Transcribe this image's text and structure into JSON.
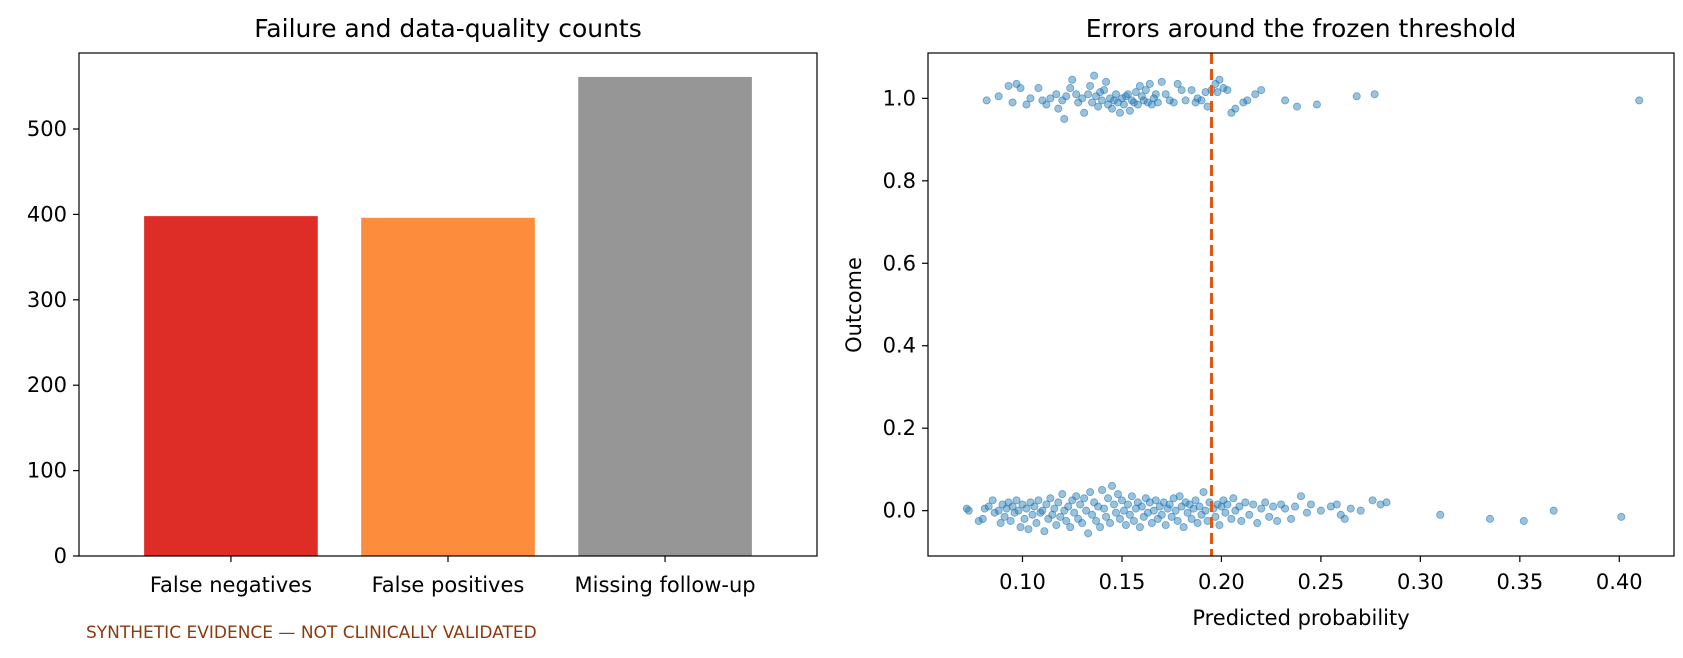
{
  "chart_data": [
    {
      "type": "bar",
      "title": "Failure and data-quality counts",
      "xlabel": "",
      "ylabel": "",
      "categories": [
        "False negatives",
        "False positives",
        "Missing follow-up"
      ],
      "values": [
        398,
        396,
        561
      ],
      "colors": [
        "#de2d26",
        "#fd8d3c",
        "#969696"
      ],
      "ylim": [
        0,
        589
      ],
      "yticks": [
        0,
        100,
        200,
        300,
        400,
        500
      ],
      "ytick_labels": [
        "0",
        "100",
        "200",
        "300",
        "400",
        "500"
      ],
      "grid": false
    },
    {
      "type": "scatter",
      "title": "Errors around the frozen threshold",
      "xlabel": "Predicted probability",
      "ylabel": "Outcome",
      "xlim": [
        0.0525,
        0.4275
      ],
      "ylim": [
        -0.11,
        1.11
      ],
      "xticks": [
        0.1,
        0.15,
        0.2,
        0.25,
        0.3,
        0.35,
        0.4
      ],
      "xtick_labels": [
        "0.10",
        "0.15",
        "0.20",
        "0.25",
        "0.30",
        "0.35",
        "0.40"
      ],
      "yticks": [
        0,
        0.2,
        0.4,
        0.6,
        0.8,
        1.0
      ],
      "ytick_labels": [
        "0.0",
        "0.2",
        "0.4",
        "0.6",
        "0.8",
        "1.0"
      ],
      "threshold": 0.195,
      "threshold_color": "#e6550d",
      "point_color": "#1f77b4",
      "grid": false,
      "points_outcome_1": [
        [
          0.082,
          0.995
        ],
        [
          0.088,
          1.005
        ],
        [
          0.093,
          1.03
        ],
        [
          0.095,
          0.99
        ],
        [
          0.097,
          1.035
        ],
        [
          0.099,
          1.025
        ],
        [
          0.102,
          0.985
        ],
        [
          0.104,
          1.0
        ],
        [
          0.108,
          1.025
        ],
        [
          0.11,
          0.995
        ],
        [
          0.112,
          0.985
        ],
        [
          0.114,
          1.0
        ],
        [
          0.117,
          1.01
        ],
        [
          0.118,
          0.975
        ],
        [
          0.12,
          0.995
        ],
        [
          0.121,
          0.95
        ],
        [
          0.122,
          1.005
        ],
        [
          0.124,
          1.025
        ],
        [
          0.125,
          1.045
        ],
        [
          0.127,
          1.01
        ],
        [
          0.128,
          0.99
        ],
        [
          0.13,
          1.0
        ],
        [
          0.131,
          0.965
        ],
        [
          0.133,
          1.01
        ],
        [
          0.134,
          1.03
        ],
        [
          0.135,
          0.99
        ],
        [
          0.136,
          1.055
        ],
        [
          0.137,
          1.005
        ],
        [
          0.138,
          0.98
        ],
        [
          0.139,
          1.015
        ],
        [
          0.14,
          0.995
        ],
        [
          0.141,
          1.02
        ],
        [
          0.142,
          1.04
        ],
        [
          0.143,
          0.985
        ],
        [
          0.144,
          1.0
        ],
        [
          0.145,
          0.975
        ],
        [
          0.146,
          0.995
        ],
        [
          0.147,
          1.01
        ],
        [
          0.148,
          0.99
        ],
        [
          0.149,
          0.965
        ],
        [
          0.15,
          1.0
        ],
        [
          0.151,
          0.985
        ],
        [
          0.152,
          1.005
        ],
        [
          0.153,
          1.01
        ],
        [
          0.154,
          0.97
        ],
        [
          0.155,
          0.995
        ],
        [
          0.156,
          0.99
        ],
        [
          0.157,
          1.015
        ],
        [
          0.158,
          0.985
        ],
        [
          0.159,
          1.03
        ],
        [
          0.16,
          1.005
        ],
        [
          0.161,
          0.995
        ],
        [
          0.162,
          1.02
        ],
        [
          0.163,
          0.99
        ],
        [
          0.164,
          1.035
        ],
        [
          0.165,
          0.985
        ],
        [
          0.166,
          1.0
        ],
        [
          0.167,
          1.01
        ],
        [
          0.168,
          0.99
        ],
        [
          0.17,
          1.04
        ],
        [
          0.172,
          1.01
        ],
        [
          0.174,
          0.995
        ],
        [
          0.176,
          0.99
        ],
        [
          0.178,
          1.035
        ],
        [
          0.18,
          1.02
        ],
        [
          0.182,
          0.995
        ],
        [
          0.185,
          1.02
        ],
        [
          0.187,
          0.99
        ],
        [
          0.188,
          1.0
        ],
        [
          0.19,
          0.995
        ],
        [
          0.192,
          1.015
        ],
        [
          0.193,
          0.98
        ],
        [
          0.195,
          1.02
        ],
        [
          0.197,
          1.035
        ],
        [
          0.198,
          1.015
        ],
        [
          0.199,
          1.045
        ],
        [
          0.201,
          1.025
        ],
        [
          0.203,
          1.02
        ],
        [
          0.205,
          0.965
        ],
        [
          0.207,
          0.975
        ],
        [
          0.211,
          0.99
        ],
        [
          0.213,
          0.995
        ],
        [
          0.217,
          1.01
        ],
        [
          0.22,
          1.02
        ],
        [
          0.232,
          0.995
        ],
        [
          0.238,
          0.98
        ],
        [
          0.248,
          0.985
        ],
        [
          0.268,
          1.005
        ],
        [
          0.277,
          1.01
        ],
        [
          0.41,
          0.995
        ]
      ],
      "points_outcome_0": [
        [
          0.072,
          0.005
        ],
        [
          0.073,
          0.0
        ],
        [
          0.078,
          -0.025
        ],
        [
          0.08,
          -0.02
        ],
        [
          0.081,
          0.005
        ],
        [
          0.083,
          0.01
        ],
        [
          0.085,
          0.025
        ],
        [
          0.086,
          -0.005
        ],
        [
          0.088,
          0.0
        ],
        [
          0.089,
          -0.03
        ],
        [
          0.09,
          0.015
        ],
        [
          0.091,
          -0.015
        ],
        [
          0.092,
          0.005
        ],
        [
          0.093,
          0.02
        ],
        [
          0.094,
          -0.025
        ],
        [
          0.095,
          0.01
        ],
        [
          0.096,
          -0.005
        ],
        [
          0.097,
          0.025
        ],
        [
          0.098,
          0.0
        ],
        [
          0.099,
          -0.04
        ],
        [
          0.1,
          0.015
        ],
        [
          0.101,
          -0.02
        ],
        [
          0.102,
          0.005
        ],
        [
          0.103,
          -0.045
        ],
        [
          0.104,
          0.02
        ],
        [
          0.105,
          -0.01
        ],
        [
          0.106,
          0.01
        ],
        [
          0.107,
          -0.03
        ],
        [
          0.108,
          0.025
        ],
        [
          0.109,
          -0.005
        ],
        [
          0.11,
          0.0
        ],
        [
          0.111,
          -0.05
        ],
        [
          0.112,
          0.015
        ],
        [
          0.113,
          -0.02
        ],
        [
          0.114,
          0.03
        ],
        [
          0.115,
          -0.01
        ],
        [
          0.116,
          0.005
        ],
        [
          0.117,
          -0.035
        ],
        [
          0.118,
          0.02
        ],
        [
          0.119,
          -0.015
        ],
        [
          0.12,
          0.04
        ],
        [
          0.121,
          0.0
        ],
        [
          0.122,
          -0.025
        ],
        [
          0.123,
          0.01
        ],
        [
          0.124,
          -0.04
        ],
        [
          0.125,
          0.025
        ],
        [
          0.126,
          -0.005
        ],
        [
          0.127,
          0.035
        ],
        [
          0.128,
          -0.02
        ],
        [
          0.129,
          0.015
        ],
        [
          0.13,
          -0.03
        ],
        [
          0.131,
          0.03
        ],
        [
          0.132,
          0.0
        ],
        [
          0.133,
          -0.055
        ],
        [
          0.134,
          0.045
        ],
        [
          0.135,
          -0.01
        ],
        [
          0.136,
          0.02
        ],
        [
          0.137,
          -0.025
        ],
        [
          0.138,
          0.01
        ],
        [
          0.139,
          -0.04
        ],
        [
          0.14,
          0.05
        ],
        [
          0.141,
          0.005
        ],
        [
          0.142,
          -0.015
        ],
        [
          0.143,
          0.03
        ],
        [
          0.144,
          -0.03
        ],
        [
          0.145,
          0.06
        ],
        [
          0.146,
          0.015
        ],
        [
          0.147,
          -0.005
        ],
        [
          0.148,
          0.04
        ],
        [
          0.149,
          -0.02
        ],
        [
          0.15,
          0.025
        ],
        [
          0.151,
          0.0
        ],
        [
          0.152,
          -0.035
        ],
        [
          0.153,
          0.015
        ],
        [
          0.154,
          -0.01
        ],
        [
          0.155,
          0.035
        ],
        [
          0.156,
          -0.025
        ],
        [
          0.157,
          0.005
        ],
        [
          0.158,
          0.02
        ],
        [
          0.159,
          -0.04
        ],
        [
          0.16,
          0.01
        ],
        [
          0.161,
          -0.015
        ],
        [
          0.162,
          0.03
        ],
        [
          0.163,
          -0.005
        ],
        [
          0.164,
          0.02
        ],
        [
          0.165,
          -0.03
        ],
        [
          0.166,
          0.0
        ],
        [
          0.167,
          0.025
        ],
        [
          0.168,
          -0.02
        ],
        [
          0.169,
          0.01
        ],
        [
          0.17,
          -0.01
        ],
        [
          0.171,
          0.02
        ],
        [
          0.172,
          -0.035
        ],
        [
          0.173,
          0.005
        ],
        [
          0.174,
          0.015
        ],
        [
          0.175,
          -0.015
        ],
        [
          0.176,
          0.03
        ],
        [
          0.177,
          0.0
        ],
        [
          0.178,
          -0.025
        ],
        [
          0.179,
          0.035
        ],
        [
          0.18,
          0.01
        ],
        [
          0.181,
          -0.04
        ],
        [
          0.182,
          0.02
        ],
        [
          0.183,
          -0.005
        ],
        [
          0.184,
          0.015
        ],
        [
          0.185,
          -0.02
        ],
        [
          0.186,
          0.005
        ],
        [
          0.187,
          0.025
        ],
        [
          0.188,
          -0.03
        ],
        [
          0.189,
          0.01
        ],
        [
          0.19,
          -0.01
        ],
        [
          0.191,
          0.045
        ],
        [
          0.192,
          0.0
        ],
        [
          0.193,
          -0.025
        ],
        [
          0.194,
          0.02
        ],
        [
          0.196,
          0.005
        ],
        [
          0.197,
          -0.015
        ],
        [
          0.198,
          0.015
        ],
        [
          0.199,
          -0.035
        ],
        [
          0.2,
          0.01
        ],
        [
          0.201,
          0.025
        ],
        [
          0.202,
          -0.005
        ],
        [
          0.203,
          0.015
        ],
        [
          0.205,
          -0.02
        ],
        [
          0.206,
          0.03
        ],
        [
          0.207,
          0.0
        ],
        [
          0.209,
          0.01
        ],
        [
          0.21,
          -0.025
        ],
        [
          0.212,
          0.02
        ],
        [
          0.214,
          -0.01
        ],
        [
          0.216,
          0.015
        ],
        [
          0.218,
          -0.03
        ],
        [
          0.22,
          0.005
        ],
        [
          0.222,
          0.02
        ],
        [
          0.224,
          -0.015
        ],
        [
          0.226,
          0.01
        ],
        [
          0.228,
          -0.025
        ],
        [
          0.23,
          0.015
        ],
        [
          0.232,
          0.005
        ],
        [
          0.235,
          -0.02
        ],
        [
          0.237,
          0.01
        ],
        [
          0.24,
          0.035
        ],
        [
          0.243,
          -0.005
        ],
        [
          0.245,
          0.015
        ],
        [
          0.25,
          0.0
        ],
        [
          0.255,
          0.01
        ],
        [
          0.258,
          0.015
        ],
        [
          0.26,
          -0.01
        ],
        [
          0.262,
          -0.02
        ],
        [
          0.265,
          0.005
        ],
        [
          0.27,
          0.0
        ],
        [
          0.276,
          0.025
        ],
        [
          0.28,
          0.015
        ],
        [
          0.283,
          0.02
        ],
        [
          0.31,
          -0.01
        ],
        [
          0.335,
          -0.02
        ],
        [
          0.352,
          -0.025
        ],
        [
          0.367,
          0.0
        ],
        [
          0.401,
          -0.015
        ]
      ]
    }
  ],
  "footnote": "SYNTHETIC EVIDENCE — NOT CLINICALLY VALIDATED",
  "footnote_color": "#8b3a0f"
}
